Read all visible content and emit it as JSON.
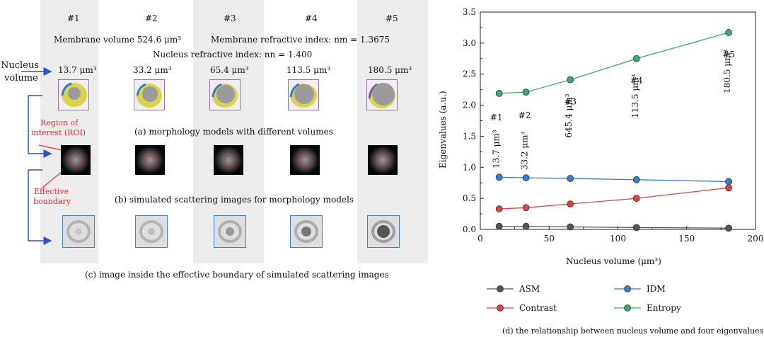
{
  "left": {
    "columns": [
      "#1",
      "#2",
      "#3",
      "#4",
      "#5"
    ],
    "membrane_volume": "Membrane volume 524.6 μm³",
    "membrane_refractive_index": "Membrane refractive index: nm = 1.3675",
    "nucleus_refractive_index": "Nucleus refractive index: nn = 1.400",
    "nucleus_volume_label_1": "Nucleus",
    "nucleus_volume_label_2": "volume",
    "volumes": [
      "13.7 μm³",
      "33.2 μm³",
      "65.4 μm³",
      "113.5 μm³",
      "180.5 μm³"
    ],
    "caption_a": "(a) morphology models with different volumes",
    "caption_b": "(b) simulated scattering images for morphology models",
    "caption_c": "(c) image inside the effective boundary of simulated scattering images",
    "roi_label_1": "Region of",
    "roi_label_2": "interest (ROI)",
    "boundary_label_1": "Effective",
    "boundary_label_2": "boundary"
  },
  "chart_data": {
    "type": "line",
    "title": "(d) the relationship between nucleus volume and four eigenvalues",
    "xlabel": "Nucleus volume (μm³)",
    "ylabel": "Eigenvalues (a.u.)",
    "xlim": [
      0,
      200
    ],
    "ylim": [
      0,
      3.5
    ],
    "x_ticks": [
      "0",
      "50",
      "100",
      "150",
      "200"
    ],
    "y_ticks": [
      "0.0",
      "0.5",
      "1.0",
      "1.5",
      "2.0",
      "2.5",
      "3.0",
      "3.5"
    ],
    "x": [
      13.7,
      33.2,
      65.4,
      113.5,
      180.5
    ],
    "series": [
      {
        "name": "ASM",
        "color": "#555555",
        "values": [
          0.05,
          0.05,
          0.04,
          0.03,
          0.02
        ]
      },
      {
        "name": "IDM",
        "color": "#2f7fd8",
        "values": [
          0.84,
          0.83,
          0.82,
          0.8,
          0.77
        ]
      },
      {
        "name": "Contrast",
        "color": "#e8403f",
        "values": [
          0.33,
          0.35,
          0.41,
          0.5,
          0.67
        ]
      },
      {
        "name": "Entropy",
        "color": "#34b068",
        "values": [
          2.19,
          2.21,
          2.41,
          2.75,
          3.17
        ]
      }
    ],
    "annotations": [
      {
        "label": "#1",
        "value": "13.7 μm³"
      },
      {
        "label": "#2",
        "value": "33.2 μm³"
      },
      {
        "label": "#3",
        "value": "645.4 μm³"
      },
      {
        "label": "#4",
        "value": "113.5 μm³"
      },
      {
        "label": "#5",
        "value": "180.5 μm³"
      }
    ],
    "legend_placement": "bottom"
  }
}
